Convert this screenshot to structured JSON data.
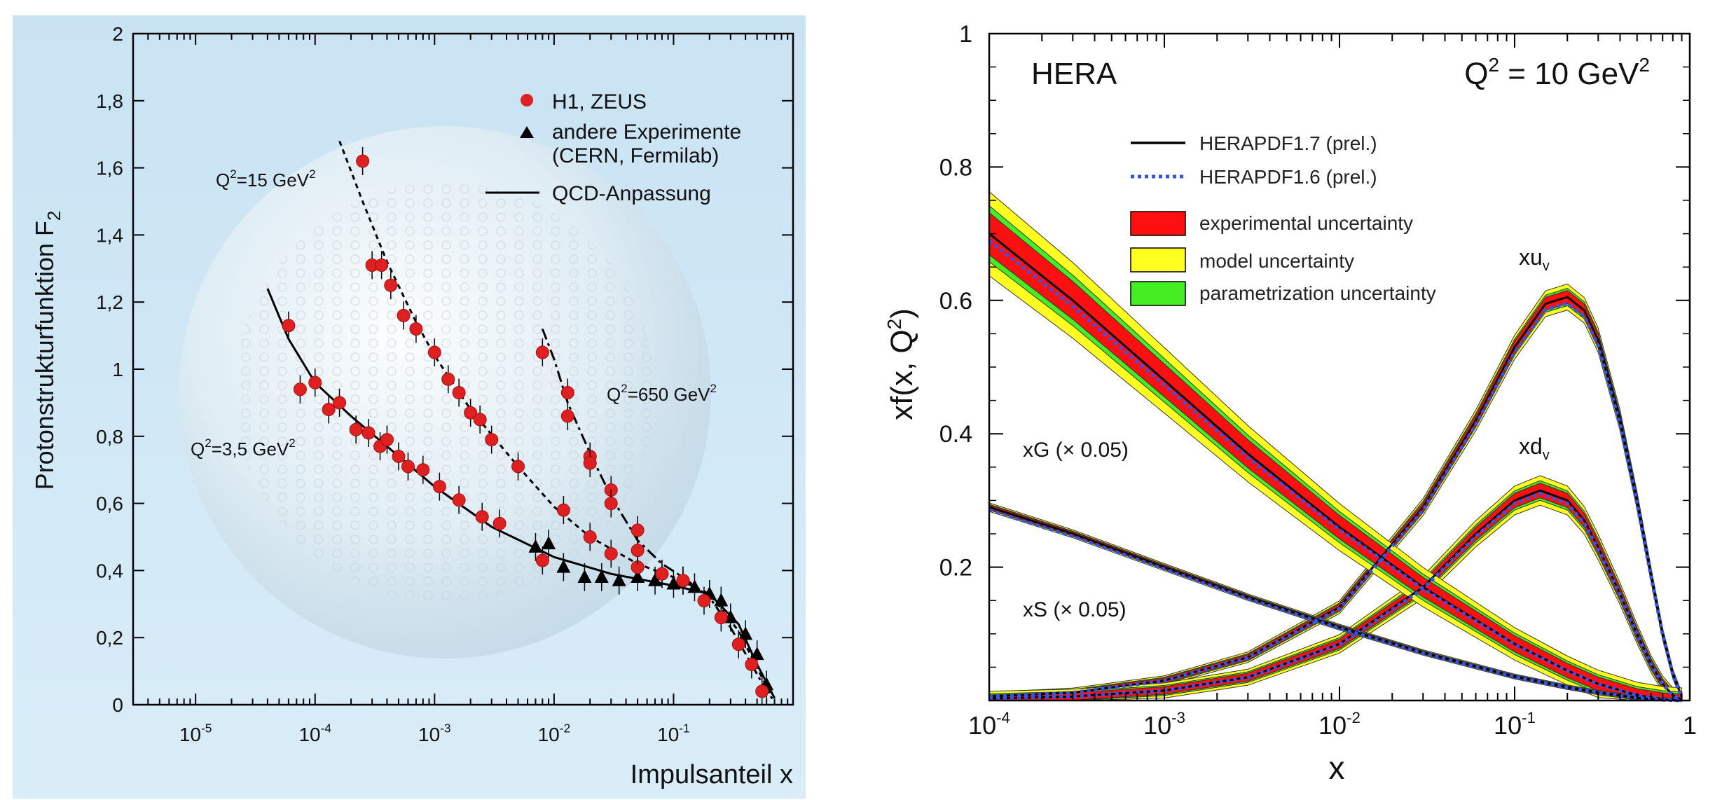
{
  "chart_data": [
    {
      "type": "scatter",
      "xscale": "log",
      "xlim": [
        3e-06,
        1
      ],
      "ylim": [
        0,
        2
      ],
      "ylabel": "Protonstrukturfunktion F",
      "ylabel_sub": "2",
      "xlabel": "Impulsanteil x",
      "yticks": [
        "0",
        "0,2",
        "0,4",
        "0,6",
        "0,8",
        "1",
        "1,2",
        "1,4",
        "1,6",
        "1,8",
        "2"
      ],
      "xticks": [
        {
          "base": "10",
          "exp": "-5"
        },
        {
          "base": "10",
          "exp": "-4"
        },
        {
          "base": "10",
          "exp": "-3"
        },
        {
          "base": "10",
          "exp": "-2"
        },
        {
          "base": "10",
          "exp": "-1"
        }
      ],
      "legend": [
        {
          "label": "H1, ZEUS",
          "marker": "circle",
          "color": "#e02020"
        },
        {
          "label": "andere Experimente",
          "label2": "(CERN, Fermilab)",
          "marker": "triangle",
          "color": "#000000"
        },
        {
          "label": "QCD-Anpassung",
          "marker": "line",
          "color": "#000000"
        }
      ],
      "annotations": [
        {
          "pre": "Q",
          "sup": "2",
          "post": "=15 GeV",
          "sup2": "2"
        },
        {
          "pre": "Q",
          "sup": "2",
          "post": "=3,5 GeV",
          "sup2": "2"
        },
        {
          "pre": "Q",
          "sup": "2",
          "post": "=650 GeV",
          "sup2": "2"
        }
      ],
      "series": [
        {
          "name": "Q²=3,5 GeV²",
          "curve": [
            [
              4e-05,
              1.24
            ],
            [
              6e-05,
              1.09
            ],
            [
              0.0001,
              0.96
            ],
            [
              0.0002,
              0.86
            ],
            [
              0.0004,
              0.77
            ],
            [
              0.001,
              0.65
            ],
            [
              0.003,
              0.53
            ],
            [
              0.01,
              0.44
            ],
            [
              0.03,
              0.39
            ],
            [
              0.1,
              0.355
            ],
            [
              0.2,
              0.33
            ],
            [
              0.35,
              0.24
            ],
            [
              0.5,
              0.12
            ],
            [
              0.7,
              0.02
            ]
          ],
          "h1zeus": [
            [
              6e-05,
              1.13
            ],
            [
              7.5e-05,
              0.94
            ],
            [
              0.0001,
              0.96
            ],
            [
              0.00013,
              0.88
            ],
            [
              0.00016,
              0.9
            ],
            [
              0.00022,
              0.82
            ],
            [
              0.00028,
              0.81
            ],
            [
              0.00035,
              0.77
            ],
            [
              0.0004,
              0.79
            ],
            [
              0.0005,
              0.74
            ],
            [
              0.0006,
              0.71
            ],
            [
              0.0008,
              0.7
            ],
            [
              0.0011,
              0.65
            ],
            [
              0.0016,
              0.61
            ],
            [
              0.0025,
              0.56
            ],
            [
              0.0035,
              0.54
            ]
          ],
          "other": [
            [
              0.007,
              0.47
            ],
            [
              0.009,
              0.48
            ],
            [
              0.012,
              0.41
            ],
            [
              0.018,
              0.38
            ],
            [
              0.025,
              0.38
            ],
            [
              0.035,
              0.37
            ],
            [
              0.05,
              0.38
            ],
            [
              0.07,
              0.37
            ],
            [
              0.1,
              0.36
            ],
            [
              0.15,
              0.35
            ],
            [
              0.2,
              0.33
            ],
            [
              0.25,
              0.31
            ],
            [
              0.3,
              0.26
            ],
            [
              0.4,
              0.21
            ],
            [
              0.5,
              0.15
            ],
            [
              0.6,
              0.06
            ]
          ],
          "red_hi": [
            [
              0.08,
              0.39
            ],
            [
              0.12,
              0.37
            ],
            [
              0.18,
              0.31
            ],
            [
              0.25,
              0.26
            ],
            [
              0.35,
              0.18
            ],
            [
              0.45,
              0.12
            ],
            [
              0.55,
              0.04
            ]
          ]
        },
        {
          "name": "Q²=15 GeV²",
          "curve": [
            [
              0.00016,
              1.68
            ],
            [
              0.00025,
              1.5
            ],
            [
              0.0004,
              1.32
            ],
            [
              0.0007,
              1.14
            ],
            [
              0.001,
              1.04
            ],
            [
              0.002,
              0.88
            ],
            [
              0.005,
              0.71
            ],
            [
              0.01,
              0.59
            ],
            [
              0.02,
              0.5
            ],
            [
              0.05,
              0.42
            ],
            [
              0.1,
              0.38
            ],
            [
              0.2,
              0.33
            ],
            [
              0.35,
              0.22
            ],
            [
              0.5,
              0.11
            ],
            [
              0.65,
              0.03
            ]
          ],
          "h1zeus": [
            [
              0.00025,
              1.62
            ],
            [
              0.0003,
              1.31
            ],
            [
              0.00036,
              1.31
            ],
            [
              0.00043,
              1.25
            ],
            [
              0.00055,
              1.16
            ],
            [
              0.0007,
              1.12
            ],
            [
              0.001,
              1.05
            ],
            [
              0.0013,
              0.97
            ],
            [
              0.0016,
              0.93
            ],
            [
              0.002,
              0.87
            ],
            [
              0.0024,
              0.85
            ],
            [
              0.003,
              0.79
            ],
            [
              0.005,
              0.71
            ],
            [
              0.008,
              0.43
            ],
            [
              0.012,
              0.58
            ],
            [
              0.02,
              0.5
            ],
            [
              0.03,
              0.45
            ],
            [
              0.05,
              0.41
            ],
            [
              0.08,
              0.39
            ],
            [
              0.12,
              0.37
            ]
          ]
        },
        {
          "name": "Q²=650 GeV²",
          "curve": [
            [
              0.008,
              1.12
            ],
            [
              0.01,
              1.03
            ],
            [
              0.013,
              0.9
            ],
            [
              0.02,
              0.75
            ],
            [
              0.03,
              0.62
            ],
            [
              0.05,
              0.49
            ],
            [
              0.08,
              0.42
            ],
            [
              0.12,
              0.38
            ],
            [
              0.2,
              0.32
            ],
            [
              0.3,
              0.23
            ],
            [
              0.45,
              0.12
            ],
            [
              0.6,
              0.04
            ],
            [
              0.7,
              0.01
            ]
          ],
          "h1zeus": [
            [
              0.008,
              1.05
            ],
            [
              0.013,
              0.93
            ],
            [
              0.013,
              0.86
            ],
            [
              0.02,
              0.74
            ],
            [
              0.02,
              0.72
            ],
            [
              0.03,
              0.64
            ],
            [
              0.03,
              0.6
            ],
            [
              0.05,
              0.52
            ],
            [
              0.05,
              0.46
            ]
          ]
        }
      ]
    },
    {
      "type": "line",
      "xscale": "log",
      "xlim": [
        0.0001,
        1
      ],
      "ylim": [
        0,
        1
      ],
      "xlabel": "x",
      "ylabel": "xf(x, Q",
      "ylabel_sup": "2",
      "ylabel_post": ")",
      "title_left": "HERA",
      "title_right": "Q",
      "title_right_sup": "2",
      "title_right_post": " = 10 GeV",
      "title_right_sup2": "2",
      "yticks": [
        "1",
        "0.8",
        "0.6",
        "0.4",
        "0.2"
      ],
      "xticks": [
        {
          "base": "10",
          "exp": "-4"
        },
        {
          "base": "10",
          "exp": "-3"
        },
        {
          "base": "10",
          "exp": "-2"
        },
        {
          "base": "10",
          "exp": "-1"
        },
        {
          "base": "1",
          "exp": ""
        }
      ],
      "legend": [
        {
          "label": "HERAPDF1.7 (prel.)",
          "style": "solid",
          "color": "#000000"
        },
        {
          "label": "HERAPDF1.6 (prel.)",
          "style": "dotted",
          "color": "#3355ee"
        },
        {
          "label": "experimental uncertainty",
          "style": "box",
          "color": "#ff1010"
        },
        {
          "label": "model uncertainty",
          "style": "box",
          "color": "#ffff20"
        },
        {
          "label": "parametrization uncertainty",
          "style": "box",
          "color": "#44ee22"
        }
      ],
      "curve_labels": [
        {
          "name": "xu",
          "sub": "v"
        },
        {
          "name": "xd",
          "sub": "v"
        },
        {
          "name": "xG (× 0.05)",
          "sub": ""
        },
        {
          "name": "xS (× 0.05)",
          "sub": ""
        }
      ],
      "series": [
        {
          "name": "xu_v",
          "x": [
            0.0001,
            0.0003,
            0.001,
            0.003,
            0.01,
            0.03,
            0.06,
            0.1,
            0.15,
            0.2,
            0.25,
            0.3,
            0.4,
            0.5,
            0.6,
            0.7,
            0.8,
            0.9
          ],
          "y": [
            0.006,
            0.012,
            0.03,
            0.065,
            0.14,
            0.29,
            0.42,
            0.53,
            0.595,
            0.605,
            0.585,
            0.54,
            0.42,
            0.3,
            0.19,
            0.1,
            0.04,
            0.005
          ],
          "band": 0.012
        },
        {
          "name": "xd_v",
          "x": [
            0.0001,
            0.0003,
            0.001,
            0.003,
            0.01,
            0.03,
            0.06,
            0.1,
            0.14,
            0.2,
            0.25,
            0.3,
            0.4,
            0.5,
            0.6,
            0.7,
            0.8,
            0.9
          ],
          "y": [
            0.003,
            0.006,
            0.015,
            0.035,
            0.085,
            0.17,
            0.25,
            0.3,
            0.315,
            0.3,
            0.27,
            0.23,
            0.16,
            0.1,
            0.055,
            0.025,
            0.008,
            0.001
          ],
          "band": 0.02
        },
        {
          "name": "xG (× 0.05)",
          "x": [
            0.0001,
            0.0003,
            0.001,
            0.003,
            0.01,
            0.03,
            0.1,
            0.2,
            0.3,
            0.5,
            0.7,
            0.9
          ],
          "y": [
            0.7,
            0.6,
            0.48,
            0.37,
            0.26,
            0.17,
            0.085,
            0.045,
            0.025,
            0.008,
            0.002,
            0.0
          ],
          "band": 0.035
        },
        {
          "name": "xS (× 0.05)",
          "x": [
            0.0001,
            0.0003,
            0.001,
            0.003,
            0.01,
            0.03,
            0.1,
            0.2,
            0.3,
            0.5,
            0.7,
            0.9
          ],
          "y": [
            0.29,
            0.25,
            0.2,
            0.155,
            0.11,
            0.072,
            0.036,
            0.02,
            0.012,
            0.004,
            0.001,
            0.0
          ],
          "band": 0.006
        }
      ]
    }
  ]
}
